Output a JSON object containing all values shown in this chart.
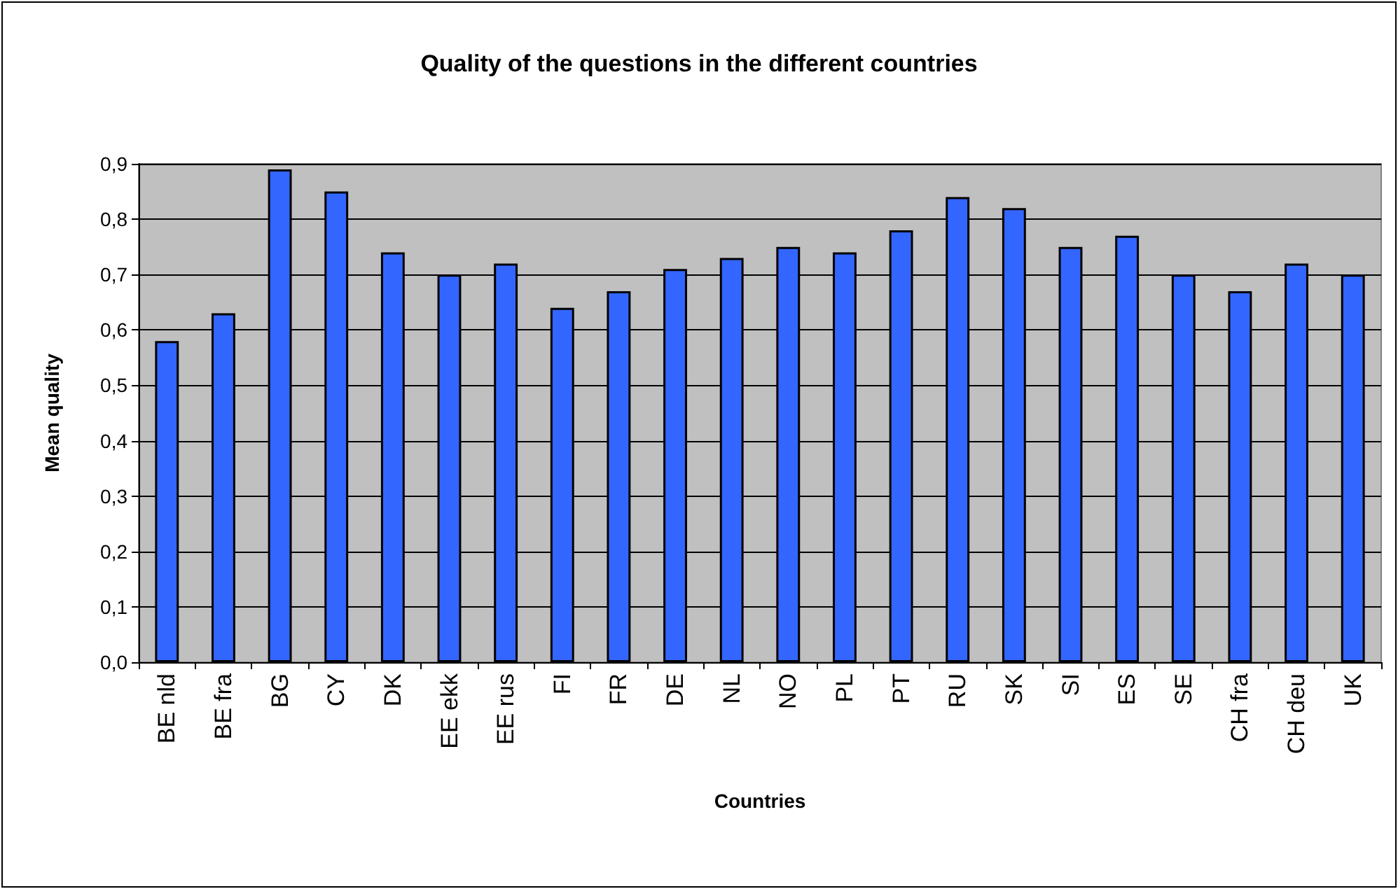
{
  "chart_data": {
    "type": "bar",
    "title": "Quality of the questions in the different countries",
    "xlabel": "Countries",
    "ylabel": "Mean quality",
    "categories": [
      "BE nld",
      "BE fra",
      "BG",
      "CY",
      "DK",
      "EE ekk",
      "EE rus",
      "FI",
      "FR",
      "DE",
      "NL",
      "NO",
      "PL",
      "PT",
      "RU",
      "SK",
      "SI",
      "ES",
      "SE",
      "CH fra",
      "CH deu",
      "UK"
    ],
    "values": [
      0.58,
      0.63,
      0.89,
      0.85,
      0.74,
      0.7,
      0.72,
      0.64,
      0.67,
      0.71,
      0.73,
      0.75,
      0.74,
      0.78,
      0.84,
      0.82,
      0.75,
      0.77,
      0.7,
      0.67,
      0.72,
      0.7
    ],
    "color": "#3366ff",
    "ylim": [
      0,
      0.9
    ],
    "yticks": [
      {
        "value": 0,
        "label": "0,0"
      },
      {
        "value": 0.1,
        "label": "0,1"
      },
      {
        "value": 0.2,
        "label": "0,2"
      },
      {
        "value": 0.3,
        "label": "0,3"
      },
      {
        "value": 0.4,
        "label": "0,4"
      },
      {
        "value": 0.5,
        "label": "0,5"
      },
      {
        "value": 0.6,
        "label": "0,6"
      },
      {
        "value": 0.7,
        "label": "0,7"
      },
      {
        "value": 0.8,
        "label": "0,8"
      },
      {
        "value": 0.9,
        "label": "0,9"
      }
    ],
    "grid": "y"
  }
}
